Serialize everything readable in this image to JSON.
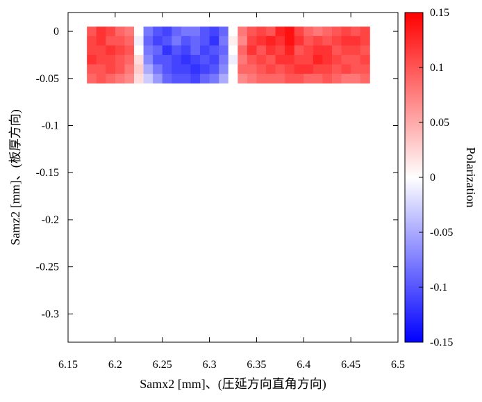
{
  "chart_data": {
    "type": "heatmap",
    "xlabel": "Samx2 [mm]、(圧延方向直角方向)",
    "ylabel": "Samz2 [mm]、(板厚方向)",
    "colorbar_label": "Polarization",
    "xlim": [
      6.15,
      6.5
    ],
    "ylim": [
      -0.33,
      0.02
    ],
    "x_ticks": [
      "6.15",
      "6.2",
      "6.25",
      "6.3",
      "6.35",
      "6.4",
      "6.45",
      "6.5"
    ],
    "y_ticks": [
      "0",
      "-0.05",
      "-0.1",
      "-0.15",
      "-0.2",
      "-0.25",
      "-0.3"
    ],
    "colorbar_range": [
      -0.15,
      0.15
    ],
    "colorbar_ticks": [
      "0.15",
      "0.1",
      "0.05",
      "0",
      "-0.05",
      "-0.1",
      "-0.15"
    ],
    "colormap": {
      "low": "#0000ff",
      "mid": "#ffffff",
      "high": "#ff0000"
    },
    "x_centers": [
      6.175,
      6.185,
      6.195,
      6.205,
      6.215,
      6.225,
      6.235,
      6.245,
      6.255,
      6.265,
      6.275,
      6.285,
      6.295,
      6.305,
      6.315,
      6.325,
      6.335,
      6.345,
      6.355,
      6.365,
      6.375,
      6.385,
      6.395,
      6.405,
      6.415,
      6.425,
      6.435,
      6.445,
      6.455,
      6.465
    ],
    "y_centers": [
      0.0,
      -0.01,
      -0.02,
      -0.03,
      -0.04,
      -0.05
    ],
    "z": [
      [
        0.1,
        0.12,
        0.11,
        0.09,
        0.08,
        0.0,
        -0.08,
        -0.1,
        -0.11,
        -0.09,
        -0.08,
        -0.08,
        -0.1,
        -0.11,
        -0.09,
        0.0,
        0.08,
        0.1,
        0.11,
        0.1,
        0.13,
        0.14,
        0.11,
        0.09,
        0.08,
        0.09,
        0.1,
        0.11,
        0.1,
        0.11
      ],
      [
        0.11,
        0.12,
        0.1,
        0.1,
        0.09,
        -0.01,
        -0.09,
        -0.11,
        -0.1,
        -0.08,
        -0.1,
        -0.09,
        -0.1,
        -0.12,
        -0.08,
        0.01,
        0.07,
        0.11,
        0.12,
        0.13,
        0.12,
        0.14,
        0.12,
        0.1,
        0.11,
        0.1,
        0.11,
        0.12,
        0.12,
        0.11
      ],
      [
        0.11,
        0.11,
        0.12,
        0.11,
        0.1,
        0.0,
        -0.08,
        -0.09,
        -0.12,
        -0.1,
        -0.11,
        -0.09,
        -0.11,
        -0.1,
        -0.09,
        0.0,
        0.09,
        0.12,
        0.1,
        0.12,
        0.11,
        0.13,
        0.1,
        0.11,
        0.12,
        0.12,
        0.1,
        0.11,
        0.11,
        0.1
      ],
      [
        0.12,
        0.11,
        0.11,
        0.1,
        0.09,
        0.02,
        -0.07,
        -0.1,
        -0.1,
        -0.11,
        -0.12,
        -0.11,
        -0.1,
        -0.11,
        -0.08,
        -0.01,
        0.08,
        0.1,
        0.11,
        0.1,
        0.12,
        0.12,
        0.11,
        0.11,
        0.13,
        0.12,
        0.11,
        0.1,
        0.1,
        0.11
      ],
      [
        0.1,
        0.1,
        0.11,
        0.1,
        0.08,
        0.03,
        -0.05,
        -0.08,
        -0.1,
        -0.11,
        -0.11,
        -0.12,
        -0.11,
        -0.1,
        -0.07,
        0.0,
        0.09,
        0.09,
        0.1,
        0.11,
        0.1,
        0.11,
        0.12,
        0.12,
        0.11,
        0.11,
        0.1,
        0.11,
        0.1,
        0.1
      ],
      [
        0.09,
        0.1,
        0.09,
        0.08,
        0.07,
        0.02,
        -0.03,
        -0.06,
        -0.09,
        -0.1,
        -0.1,
        -0.11,
        -0.09,
        -0.08,
        -0.05,
        0.0,
        0.07,
        0.08,
        0.09,
        0.09,
        0.09,
        0.1,
        0.1,
        0.09,
        0.09,
        0.1,
        0.09,
        0.08,
        0.08,
        0.09
      ]
    ]
  }
}
